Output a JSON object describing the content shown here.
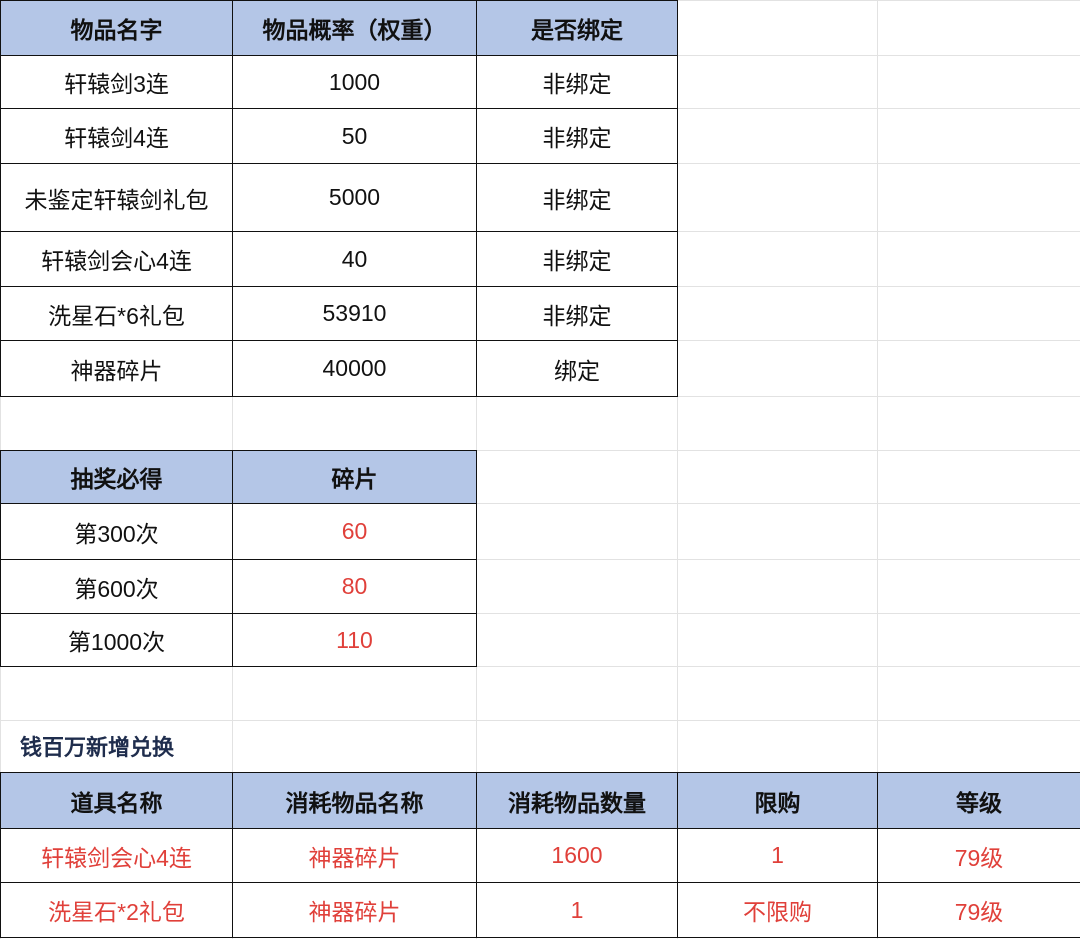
{
  "table1": {
    "header": [
      "物品名字",
      "物品概率（权重）",
      "是否绑定"
    ],
    "rows": [
      [
        "轩辕剑3连",
        1000,
        "非绑定"
      ],
      [
        "轩辕剑4连",
        50,
        "非绑定"
      ],
      [
        "未鉴定轩辕剑礼包",
        5000,
        "非绑定"
      ],
      [
        "轩辕剑会心4连",
        40,
        "非绑定"
      ],
      [
        "洗星石*6礼包",
        53910,
        "非绑定"
      ],
      [
        "神器碎片",
        40000,
        "绑定"
      ]
    ]
  },
  "table2": {
    "header": [
      "抽奖必得",
      "碎片"
    ],
    "rows": [
      [
        "第300次",
        60
      ],
      [
        "第600次",
        80
      ],
      [
        "第1000次",
        110
      ]
    ]
  },
  "section_title": "钱百万新增兑换",
  "table3": {
    "header": [
      "道具名称",
      "消耗物品名称",
      "消耗物品数量",
      "限购",
      "等级"
    ],
    "rows": [
      [
        "轩辕剑会心4连",
        "神器碎片",
        1600,
        1,
        "79级"
      ],
      [
        "洗星石*2礼包",
        "神器碎片",
        1,
        "不限购",
        "79级"
      ]
    ]
  }
}
